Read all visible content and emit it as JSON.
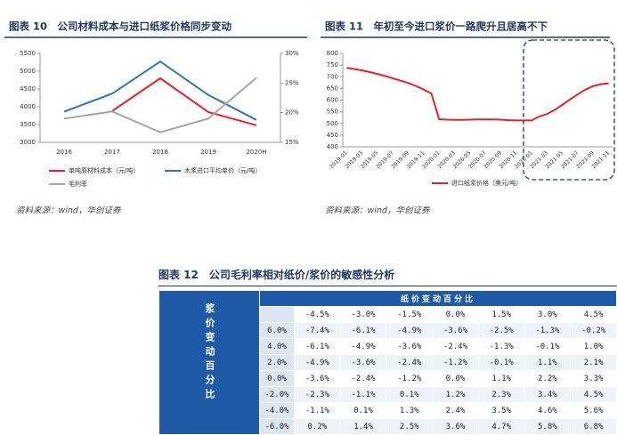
{
  "chart_data": [
    {
      "type": "line",
      "title": "图表 10　公司材料成本与进口纸浆价格同步变动",
      "categories": [
        "2016",
        "2017",
        "2018",
        "2019",
        "2020H"
      ],
      "series": [
        {
          "name": "单吨原材料成本（元/吨）",
          "color": "#e8202a",
          "values": [
            null,
            3880,
            4800,
            3850,
            3480
          ]
        },
        {
          "name": "木浆进口平均单价（元/吨）",
          "color": "#2e75b6",
          "values": [
            3860,
            4370,
            5270,
            4330,
            3630
          ]
        },
        {
          "name": "毛利率",
          "color": "#a6a6a6",
          "axis": "y2",
          "values": [
            19.0,
            20.2,
            16.7,
            19.0,
            25.9
          ]
        }
      ],
      "ylim": [
        3000,
        5500
      ],
      "yticks": [
        3000,
        3500,
        4000,
        4500,
        5000,
        5500
      ],
      "y2lim": [
        15,
        30
      ],
      "y2ticks": [
        {
          "value": 15,
          "label": "15%"
        },
        {
          "value": 20,
          "label": "20%"
        },
        {
          "value": 25,
          "label": "25%"
        },
        {
          "value": 30,
          "label": "30%"
        }
      ],
      "source": "资料来源：wind，华创证券"
    },
    {
      "type": "line",
      "title": "图表 11　年初至今进口浆价一路爬升且居高不下",
      "categories": [
        "2019-01",
        null,
        "2019-03",
        null,
        "2019-05",
        null,
        "2019-07",
        null,
        "2019-09",
        null,
        "2019-11",
        null,
        "2020-01",
        null,
        "2020-03",
        null,
        "2020-05",
        null,
        "2020-07",
        null,
        "2020-09",
        null,
        "2020-11",
        null,
        "2021-01",
        null,
        "2021-03",
        null,
        "2021-05",
        null,
        "2021-07",
        null,
        "2021-09",
        null,
        "2021-11"
      ],
      "series": [
        {
          "name": "进口纸浆价格（美元/吨）",
          "color": "#e8202a",
          "values": [
            738,
            733,
            727,
            720,
            712,
            703,
            693,
            683,
            673,
            660,
            645,
            628,
            518,
            516,
            515,
            515,
            516,
            517,
            517,
            517,
            516,
            514,
            513,
            513,
            513,
            530,
            540,
            558,
            580,
            603,
            625,
            645,
            660,
            668,
            672
          ]
        }
      ],
      "ylim": [
        400,
        800
      ],
      "yticks": [
        400,
        450,
        500,
        550,
        600,
        650,
        700,
        750,
        800
      ],
      "source": "资料来源：wind，华创证券"
    }
  ],
  "table": {
    "title": "图表 12　公司毛利率相对纸价/浆价的敏感性分析",
    "col_group_header": "纸价变动百分比",
    "row_group_header": "浆价变动百分比",
    "columns": [
      "-4.5%",
      "-3.0%",
      "-1.5%",
      "0.0%",
      "1.5%",
      "3.0%",
      "4.5%"
    ],
    "rows": [
      {
        "label": "6.0%",
        "cells": [
          "-7.4%",
          "-6.1%",
          "-4.9%",
          "-3.6%",
          "-2.5%",
          "-1.3%",
          "-0.2%"
        ]
      },
      {
        "label": "4.0%",
        "cells": [
          "-6.1%",
          "-4.9%",
          "-3.6%",
          "-2.4%",
          "-1.3%",
          "-0.1%",
          "1.0%"
        ]
      },
      {
        "label": "2.0%",
        "cells": [
          "-4.9%",
          "-3.6%",
          "-2.4%",
          "-1.2%",
          "-0.1%",
          "1.1%",
          "2.1%"
        ]
      },
      {
        "label": "0.0%",
        "cells": [
          "-3.6%",
          "-2.4%",
          "-1.2%",
          "0.0%",
          "1.1%",
          "2.2%",
          "3.3%"
        ]
      },
      {
        "label": "-2.0%",
        "cells": [
          "-2.3%",
          "-1.1%",
          "0.1%",
          "1.2%",
          "2.3%",
          "3.4%",
          "4.5%"
        ]
      },
      {
        "label": "-4.0%",
        "cells": [
          "-1.1%",
          "0.1%",
          "1.3%",
          "2.4%",
          "3.5%",
          "4.6%",
          "5.6%"
        ]
      },
      {
        "label": "-6.0%",
        "cells": [
          "0.2%",
          "1.4%",
          "2.5%",
          "3.6%",
          "4.7%",
          "5.8%",
          "6.8%"
        ]
      }
    ]
  }
}
